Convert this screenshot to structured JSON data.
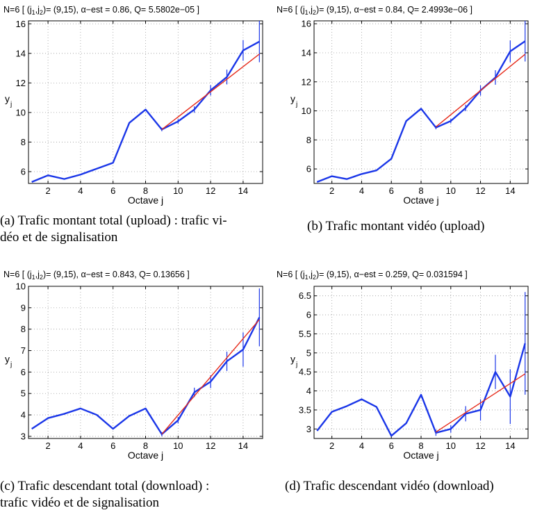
{
  "charts": [
    {
      "header": {
        "n": "N=6",
        "j": "[ (j",
        "s1": "1",
        "c": ",j",
        "s2": "2",
        "tail": ")= (9,15),   α−est = 0.86,     Q= 5.5802e−05 ]"
      },
      "caption": [
        "(a) Trafic montant total (upload) : trafic vi-",
        "déo et de signalisation"
      ]
    },
    {
      "header": {
        "n": "N=6",
        "j": "[ (j",
        "s1": "1",
        "c": ",j",
        "s2": "2",
        "tail": ")= (9,15),   α−est = 0.84,     Q= 2.4993e−06 ]"
      },
      "caption": [
        "(b) Trafic montant vidéo (upload)"
      ]
    },
    {
      "header": {
        "n": "N=6",
        "j": "[ (j",
        "s1": "1",
        "c": ",j",
        "s2": "2",
        "tail": ")= (9,15),   α−est = 0.843,    Q= 0.13656 ]"
      },
      "caption": [
        "(c) Trafic descendant total (download) :",
        "trafic vidéo et de signalisation"
      ]
    },
    {
      "header": {
        "n": "N=6",
        "j": "[ (j",
        "s1": "1",
        "c": ",j",
        "s2": "2",
        "tail": ")= (9,15),   α−est = 0.259,    Q= 0.031594 ]"
      },
      "caption": [
        "(d) Trafic descendant vidéo (download)"
      ]
    }
  ],
  "chart_data": [
    {
      "type": "line",
      "xlabel": "Octave j",
      "ylabel": "y",
      "ylabel_sub": "j",
      "xlim": [
        0.8,
        15.2
      ],
      "ylim": [
        5.2,
        16.2
      ],
      "xticks": [
        2,
        4,
        6,
        8,
        10,
        12,
        14
      ],
      "yticks": [
        6,
        8,
        10,
        12,
        14,
        16
      ],
      "grid": true,
      "colors": {
        "series": "#1a36e8",
        "fit": "#e62a1a"
      },
      "x": [
        1,
        2,
        3,
        4,
        5,
        6,
        7,
        8,
        9,
        10,
        11,
        12,
        13,
        14,
        15
      ],
      "y": [
        5.3,
        5.75,
        5.5,
        5.8,
        6.2,
        6.6,
        9.3,
        10.2,
        8.85,
        9.4,
        10.2,
        11.5,
        12.4,
        14.2,
        14.8
      ],
      "errors": [
        [
          9,
          0.12
        ],
        [
          10,
          0.15
        ],
        [
          11,
          0.22
        ],
        [
          12,
          0.35
        ],
        [
          13,
          0.5
        ],
        [
          14,
          0.7
        ],
        [
          15,
          1.4
        ]
      ],
      "fit": {
        "x": [
          9,
          15
        ],
        "y": [
          8.85,
          13.95
        ]
      }
    },
    {
      "type": "line",
      "xlabel": "Octave j",
      "ylabel": "y",
      "ylabel_sub": "j",
      "xlim": [
        0.8,
        15.2
      ],
      "ylim": [
        5.0,
        16.2
      ],
      "xticks": [
        2,
        4,
        6,
        8,
        10,
        12,
        14
      ],
      "yticks": [
        6,
        8,
        10,
        12,
        14,
        16
      ],
      "grid": true,
      "colors": {
        "series": "#1a36e8",
        "fit": "#e62a1a"
      },
      "x": [
        1,
        2,
        3,
        4,
        5,
        6,
        7,
        8,
        9,
        10,
        11,
        12,
        13,
        14,
        15
      ],
      "y": [
        5.1,
        5.5,
        5.3,
        5.65,
        5.9,
        6.7,
        9.3,
        10.15,
        8.85,
        9.3,
        10.2,
        11.4,
        12.3,
        14.1,
        14.8
      ],
      "errors": [
        [
          9,
          0.12
        ],
        [
          10,
          0.15
        ],
        [
          11,
          0.22
        ],
        [
          12,
          0.35
        ],
        [
          13,
          0.5
        ],
        [
          14,
          0.75
        ],
        [
          15,
          1.4
        ]
      ],
      "fit": {
        "x": [
          9,
          15
        ],
        "y": [
          8.9,
          13.9
        ]
      }
    },
    {
      "type": "line",
      "xlabel": "Octave j",
      "ylabel": "y",
      "ylabel_sub": "j",
      "xlim": [
        0.8,
        15.2
      ],
      "ylim": [
        2.9,
        10.0
      ],
      "xticks": [
        2,
        4,
        6,
        8,
        10,
        12,
        14
      ],
      "yticks": [
        3,
        4,
        5,
        6,
        7,
        8,
        9,
        10
      ],
      "grid": true,
      "colors": {
        "series": "#1a36e8",
        "fit": "#e62a1a"
      },
      "x": [
        1,
        2,
        3,
        4,
        5,
        6,
        7,
        8,
        9,
        10,
        11,
        12,
        13,
        14,
        15
      ],
      "y": [
        3.35,
        3.85,
        4.05,
        4.3,
        4.0,
        3.35,
        3.95,
        4.3,
        3.1,
        3.75,
        5.05,
        5.55,
        6.5,
        7.05,
        8.55
      ],
      "errors": [
        [
          9,
          0.1
        ],
        [
          10,
          0.15
        ],
        [
          11,
          0.22
        ],
        [
          12,
          0.3
        ],
        [
          13,
          0.45
        ],
        [
          14,
          0.8
        ],
        [
          15,
          1.35
        ]
      ],
      "fit": {
        "x": [
          9,
          15
        ],
        "y": [
          3.1,
          8.45
        ]
      }
    },
    {
      "type": "line",
      "xlabel": "Octave j",
      "ylabel": "y",
      "ylabel_sub": "j",
      "xlim": [
        0.8,
        15.2
      ],
      "ylim": [
        2.75,
        6.75
      ],
      "xticks": [
        2,
        4,
        6,
        8,
        10,
        12,
        14
      ],
      "yticks": [
        3,
        3.5,
        4,
        4.5,
        5,
        5.5,
        6,
        6.5
      ],
      "grid": true,
      "colors": {
        "series": "#1a36e8",
        "fit": "#e62a1a"
      },
      "x": [
        1,
        2,
        3,
        4,
        5,
        6,
        7,
        8,
        9,
        10,
        11,
        12,
        13,
        14,
        15
      ],
      "y": [
        2.95,
        3.45,
        3.6,
        3.78,
        3.58,
        2.82,
        3.15,
        3.9,
        2.9,
        3.0,
        3.4,
        3.5,
        4.5,
        3.85,
        5.25
      ],
      "errors": [
        [
          9,
          0.08
        ],
        [
          10,
          0.1
        ],
        [
          11,
          0.2
        ],
        [
          12,
          0.28
        ],
        [
          13,
          0.45
        ],
        [
          14,
          0.72
        ],
        [
          15,
          1.35
        ]
      ],
      "fit": {
        "x": [
          9,
          15
        ],
        "y": [
          2.92,
          4.45
        ]
      }
    }
  ]
}
